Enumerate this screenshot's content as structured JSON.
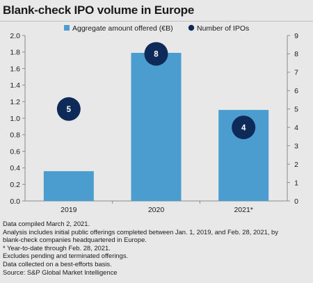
{
  "title": "Blank-check IPO volume in Europe",
  "chart_data": {
    "type": "bar",
    "categories": [
      "2019",
      "2020",
      "2021*"
    ],
    "series": [
      {
        "name": "Aggregate amount offered (€B)",
        "values": [
          0.36,
          1.79,
          1.1
        ],
        "axis": "left",
        "kind": "bar",
        "color": "#4b9dd0"
      },
      {
        "name": "Number of IPOs",
        "values": [
          5,
          8,
          4
        ],
        "axis": "right",
        "kind": "marker",
        "color": "#0e2a59"
      }
    ],
    "ylim": [
      0,
      2.0
    ],
    "yticks": [
      "0.0",
      "0.2",
      "0.4",
      "0.6",
      "0.8",
      "1.0",
      "1.2",
      "1.4",
      "1.6",
      "1.8",
      "2.0"
    ],
    "y2lim": [
      0,
      9
    ],
    "y2ticks": [
      "0",
      "1",
      "2",
      "3",
      "4",
      "5",
      "6",
      "7",
      "8",
      "9"
    ],
    "grid": false,
    "legend_position": "top"
  },
  "notes": [
    "Data compiled March 2, 2021.",
    "Analysis includes initial public offerings completed between Jan. 1, 2019, and Feb. 28, 2021, by",
    "blank-check companies headquartered in Europe.",
    "* Year-to-date through Feb. 28, 2021.",
    "Excludes pending and terminated offerings.",
    "Data collected on a best-efforts basis.",
    "Source: S&P Global Market Intelligence"
  ]
}
